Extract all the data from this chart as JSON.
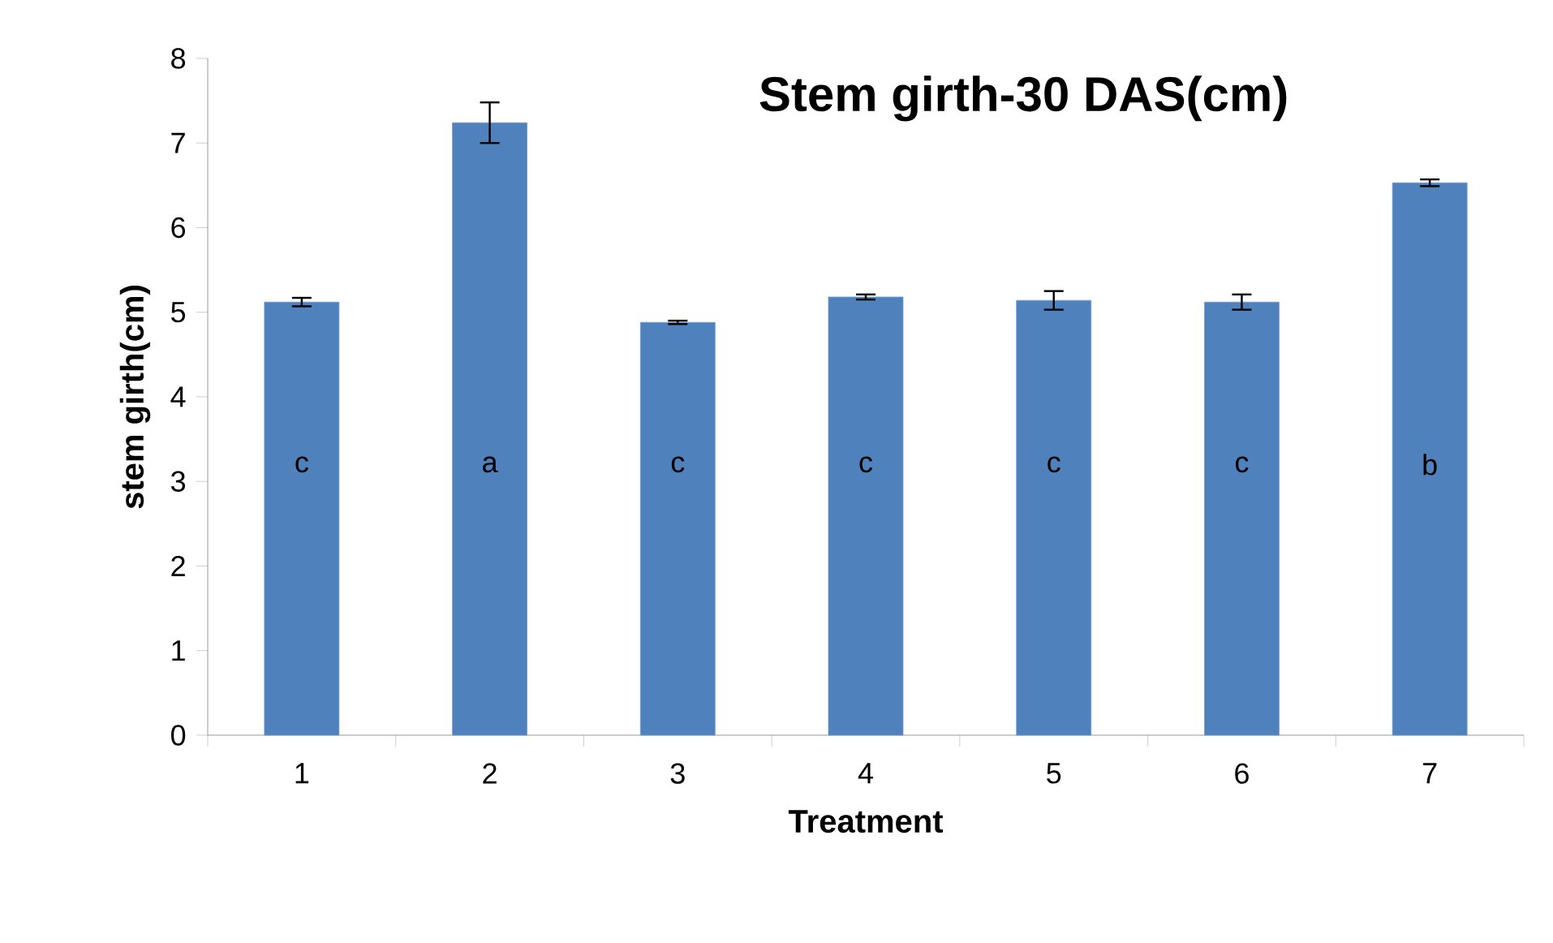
{
  "chart_data": {
    "type": "bar",
    "title": "Stem girth-30 DAS(cm)",
    "xlabel": "Treatment",
    "ylabel": "stem girth(cm)",
    "categories": [
      "1",
      "2",
      "3",
      "4",
      "5",
      "6",
      "7"
    ],
    "values": [
      5.12,
      7.24,
      4.88,
      5.18,
      5.14,
      5.12,
      6.53
    ],
    "errors": [
      0.05,
      0.24,
      0.02,
      0.03,
      0.11,
      0.09,
      0.04
    ],
    "color": "#4f81bd",
    "ylim": [
      0,
      8
    ],
    "yticks": [
      0,
      1,
      2,
      3,
      4,
      5,
      6,
      7,
      8
    ],
    "annotations": [
      "c",
      "a",
      "c",
      "c",
      "c",
      "c",
      "b"
    ]
  }
}
